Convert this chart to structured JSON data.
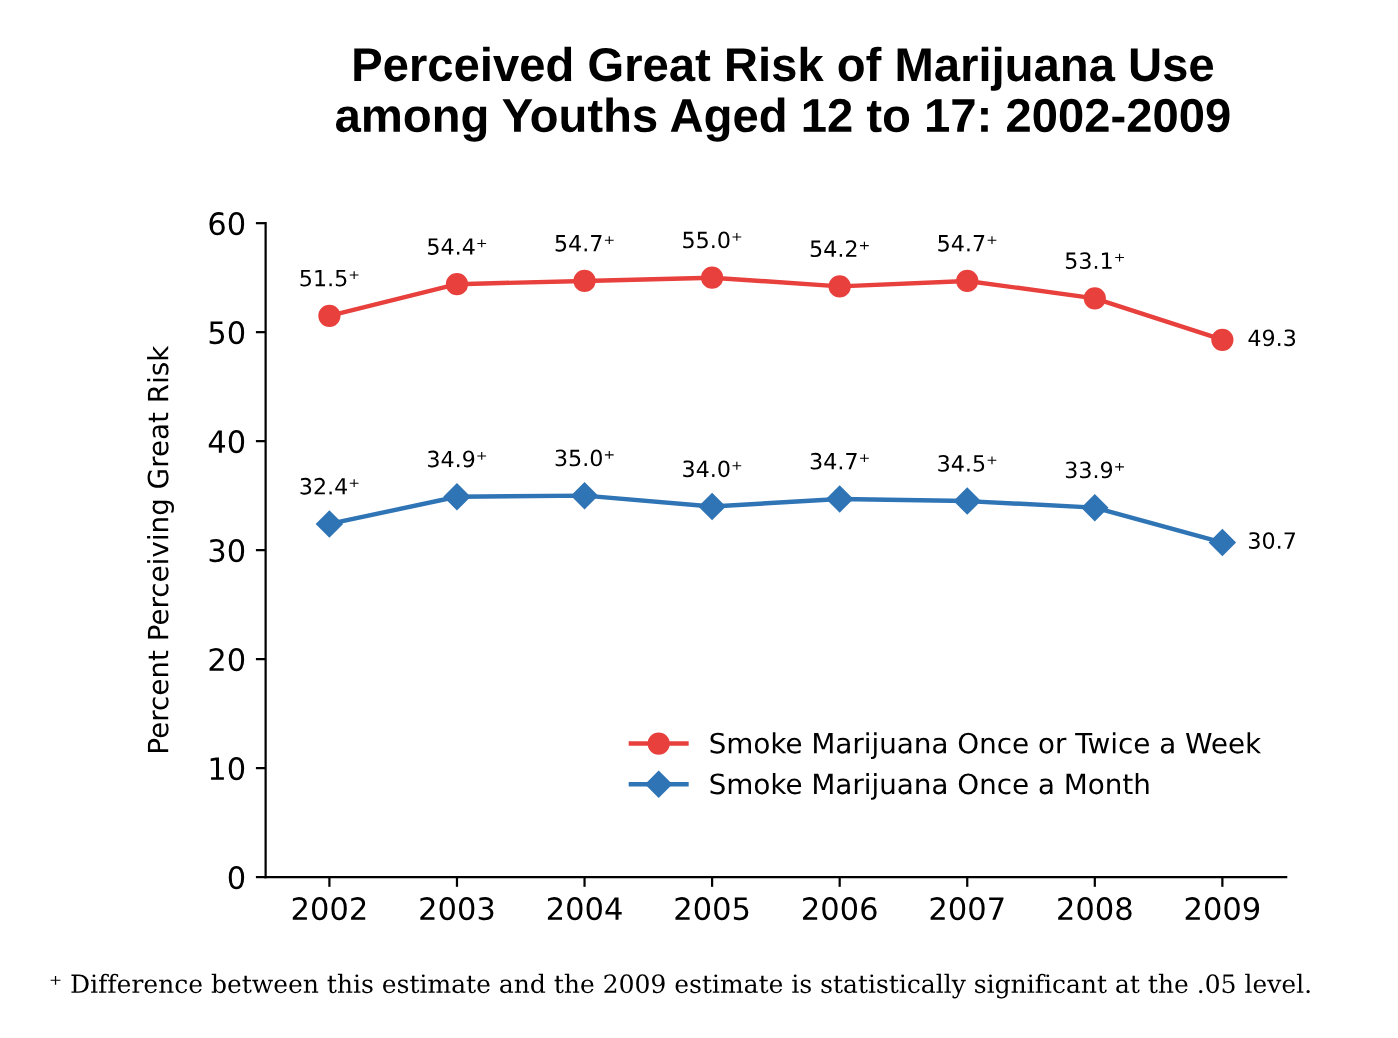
{
  "chart_data": {
    "type": "line",
    "title": "Perceived Great Risk of Marijuana Use\namong Youths Aged 12 to 17: 2002-2009",
    "ylabel": "Percent Perceiving Great Risk",
    "categories": [
      "2002",
      "2003",
      "2004",
      "2005",
      "2006",
      "2007",
      "2008",
      "2009"
    ],
    "series": [
      {
        "name": "Smoke Marijuana Once or Twice a Week",
        "color": "#e8403c",
        "marker": "circle",
        "values": [
          51.5,
          54.4,
          54.7,
          55.0,
          54.2,
          54.7,
          53.1,
          49.3
        ],
        "value_labels": [
          "51.5⁺",
          "54.4⁺",
          "54.7⁺",
          "55.0⁺",
          "54.2⁺",
          "54.7⁺",
          "53.1⁺",
          "49.3"
        ]
      },
      {
        "name": "Smoke Marijuana Once a Month",
        "color": "#2f74b5",
        "marker": "diamond",
        "values": [
          32.4,
          34.9,
          35.0,
          34.0,
          34.7,
          34.5,
          33.9,
          30.7
        ],
        "value_labels": [
          "32.4⁺",
          "34.9⁺",
          "35.0⁺",
          "34.0⁺",
          "34.7⁺",
          "34.5⁺",
          "33.9⁺",
          "30.7"
        ]
      }
    ],
    "ylim": [
      0,
      60
    ],
    "yticks": [
      0,
      10,
      20,
      30,
      40,
      50,
      60
    ],
    "grid": false,
    "legend": "bottom right",
    "line_style": "solid",
    "annotations": [
      "⁺ Difference between this estimate and the 2009 estimate is statistically significant at the .05 level."
    ]
  }
}
